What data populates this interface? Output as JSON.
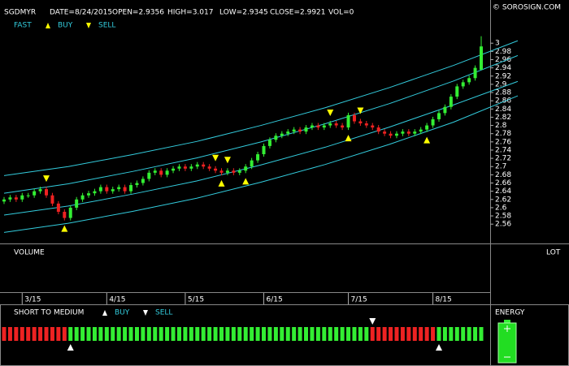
{
  "header": {
    "symbol": "SGDMYR",
    "date": "DATE=8/24/2015",
    "open": "OPEN=2.9356",
    "high": "HIGH=3.017",
    "low": "LOW=2.9345",
    "close": "CLOSE=2.9921",
    "vol": "VOL=0",
    "copyright": "© SOROSIGN.COM"
  },
  "chart_data": {
    "type": "candlestick",
    "legend": {
      "label": "FAST",
      "buy": "BUY",
      "sell": "SELL"
    },
    "categories": [
      null,
      null,
      null,
      "3/15",
      null,
      null,
      null,
      null,
      null,
      null,
      null,
      null,
      null,
      null,
      null,
      null,
      null,
      "4/15",
      null,
      null,
      null,
      null,
      null,
      null,
      null,
      null,
      null,
      null,
      null,
      null,
      "5/15",
      null,
      null,
      null,
      null,
      null,
      null,
      null,
      null,
      null,
      null,
      null,
      null,
      "6/15",
      null,
      null,
      null,
      null,
      null,
      null,
      null,
      null,
      null,
      null,
      null,
      null,
      null,
      "7/15",
      null,
      null,
      null,
      null,
      null,
      null,
      null,
      null,
      null,
      null,
      null,
      null,
      null,
      "8/15",
      null,
      null,
      null,
      null,
      null,
      null,
      null,
      null
    ],
    "open": [
      2.615,
      2.62,
      2.625,
      2.62,
      2.63,
      2.63,
      2.64,
      2.645,
      2.63,
      2.61,
      2.59,
      2.575,
      2.6,
      2.62,
      2.63,
      2.635,
      2.64,
      2.65,
      2.64,
      2.645,
      2.65,
      2.64,
      2.655,
      2.66,
      2.67,
      2.685,
      2.69,
      2.68,
      2.69,
      2.695,
      2.7,
      2.695,
      2.7,
      2.705,
      2.7,
      2.695,
      2.69,
      2.685,
      2.69,
      2.685,
      2.69,
      2.7,
      2.715,
      2.73,
      2.75,
      2.765,
      2.775,
      2.78,
      2.785,
      2.79,
      2.785,
      2.795,
      2.8,
      2.795,
      2.8,
      2.805,
      2.8,
      2.795,
      2.825,
      2.81,
      2.805,
      2.8,
      2.795,
      2.785,
      2.78,
      2.775,
      2.78,
      2.785,
      2.78,
      2.785,
      2.79,
      2.8,
      2.815,
      2.83,
      2.845,
      2.87,
      2.895,
      2.905,
      2.915,
      2.9356
    ],
    "high": [
      2.626,
      2.631,
      2.631,
      2.636,
      2.636,
      2.646,
      2.651,
      2.651,
      2.636,
      2.616,
      2.596,
      2.606,
      2.626,
      2.636,
      2.641,
      2.646,
      2.656,
      2.656,
      2.651,
      2.656,
      2.656,
      2.661,
      2.666,
      2.676,
      2.691,
      2.696,
      2.696,
      2.696,
      2.701,
      2.706,
      2.706,
      2.706,
      2.711,
      2.711,
      2.706,
      2.701,
      2.696,
      2.696,
      2.696,
      2.696,
      2.706,
      2.721,
      2.736,
      2.756,
      2.771,
      2.781,
      2.786,
      2.791,
      2.796,
      2.796,
      2.801,
      2.806,
      2.806,
      2.806,
      2.811,
      2.811,
      2.806,
      2.831,
      2.831,
      2.816,
      2.811,
      2.806,
      2.801,
      2.791,
      2.786,
      2.786,
      2.791,
      2.791,
      2.791,
      2.796,
      2.806,
      2.821,
      2.836,
      2.851,
      2.876,
      2.901,
      2.911,
      2.921,
      2.946,
      3.017
    ],
    "low": [
      2.609,
      2.614,
      2.614,
      2.614,
      2.624,
      2.624,
      2.634,
      2.624,
      2.604,
      2.584,
      2.569,
      2.569,
      2.594,
      2.614,
      2.624,
      2.629,
      2.634,
      2.634,
      2.634,
      2.639,
      2.634,
      2.634,
      2.649,
      2.654,
      2.664,
      2.679,
      2.674,
      2.674,
      2.684,
      2.689,
      2.689,
      2.689,
      2.694,
      2.694,
      2.689,
      2.684,
      2.679,
      2.679,
      2.679,
      2.679,
      2.684,
      2.694,
      2.709,
      2.724,
      2.744,
      2.759,
      2.769,
      2.774,
      2.779,
      2.779,
      2.779,
      2.789,
      2.789,
      2.789,
      2.794,
      2.794,
      2.789,
      2.789,
      2.804,
      2.799,
      2.794,
      2.789,
      2.779,
      2.774,
      2.769,
      2.769,
      2.774,
      2.774,
      2.774,
      2.779,
      2.784,
      2.794,
      2.809,
      2.824,
      2.839,
      2.864,
      2.889,
      2.899,
      2.909,
      2.9345
    ],
    "close": [
      2.62,
      2.625,
      2.62,
      2.63,
      2.63,
      2.64,
      2.645,
      2.63,
      2.61,
      2.59,
      2.575,
      2.6,
      2.62,
      2.63,
      2.635,
      2.64,
      2.65,
      2.64,
      2.645,
      2.65,
      2.64,
      2.655,
      2.66,
      2.67,
      2.685,
      2.69,
      2.68,
      2.69,
      2.695,
      2.7,
      2.695,
      2.7,
      2.705,
      2.7,
      2.695,
      2.69,
      2.685,
      2.69,
      2.685,
      2.69,
      2.7,
      2.715,
      2.73,
      2.75,
      2.765,
      2.775,
      2.78,
      2.785,
      2.79,
      2.785,
      2.795,
      2.8,
      2.795,
      2.8,
      2.805,
      2.8,
      2.795,
      2.825,
      2.81,
      2.805,
      2.8,
      2.795,
      2.785,
      2.78,
      2.775,
      2.78,
      2.785,
      2.78,
      2.785,
      2.79,
      2.8,
      2.815,
      2.83,
      2.845,
      2.87,
      2.895,
      2.905,
      2.915,
      2.94,
      2.9921
    ],
    "up_color": "#33ee33",
    "down_color": "#ee2222",
    "ylim": [
      2.513,
      3.105
    ],
    "yticks": [
      3,
      2.98,
      2.96,
      2.94,
      2.92,
      2.9,
      2.88,
      2.86,
      2.84,
      2.82,
      2.8,
      2.78,
      2.76,
      2.74,
      2.72,
      2.7,
      2.68,
      2.66,
      2.64,
      2.62,
      2.6,
      2.58,
      2.56
    ],
    "bands": [
      {
        "color": "#33ccdd",
        "values": [
          2.678,
          2.7,
          2.729,
          2.761,
          2.8,
          2.843,
          2.892,
          2.946,
          3.006
        ]
      },
      {
        "color": "#33ccdd",
        "values": [
          2.635,
          2.658,
          2.688,
          2.721,
          2.76,
          2.804,
          2.853,
          2.908,
          2.97
        ]
      },
      {
        "color": "#33ccdd",
        "values": [
          2.582,
          2.604,
          2.633,
          2.665,
          2.704,
          2.747,
          2.796,
          2.85,
          2.907
        ]
      },
      {
        "color": "#33ccdd",
        "values": [
          2.54,
          2.562,
          2.591,
          2.623,
          2.662,
          2.705,
          2.754,
          2.808,
          2.872
        ]
      }
    ],
    "signals": {
      "color": "#ffff00",
      "buy": [
        10,
        36,
        40,
        57,
        70
      ],
      "sell": [
        7,
        35,
        37,
        54,
        59
      ]
    }
  },
  "volume": {
    "label": "VOLUME",
    "unit": "LOT"
  },
  "trend": {
    "title": "SHORT TO MEDIUM",
    "buy": "BUY",
    "sell": "SELL",
    "values": [
      -1,
      -1,
      -1,
      -1,
      -1,
      -1,
      -1,
      -1,
      -1,
      -1,
      -1,
      1,
      1,
      1,
      1,
      1,
      1,
      1,
      1,
      1,
      1,
      1,
      1,
      1,
      1,
      1,
      1,
      1,
      1,
      1,
      1,
      1,
      1,
      1,
      1,
      1,
      1,
      1,
      1,
      1,
      1,
      1,
      1,
      1,
      1,
      1,
      1,
      1,
      1,
      1,
      1,
      1,
      1,
      1,
      1,
      1,
      1,
      1,
      1,
      1,
      1,
      -1,
      -1,
      -1,
      -1,
      -1,
      -1,
      -1,
      -1,
      -1,
      -1,
      -1,
      1,
      1,
      1,
      1,
      1,
      1,
      1,
      1
    ],
    "signals": {
      "buy": [
        11,
        72
      ],
      "sell": [
        61
      ]
    }
  },
  "energy": {
    "label": "ENERGY"
  }
}
